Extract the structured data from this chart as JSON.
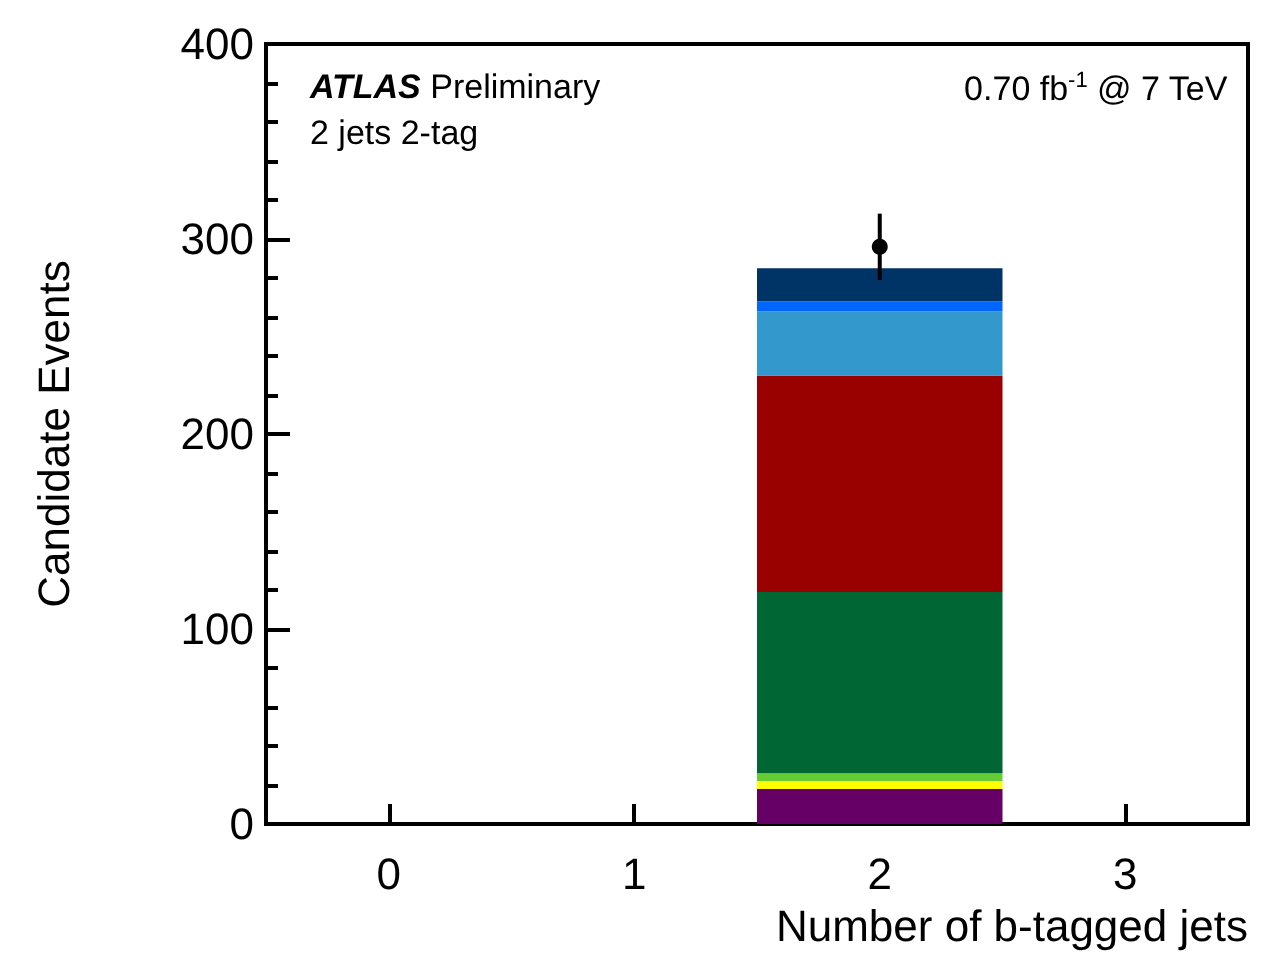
{
  "chart_data": {
    "type": "bar",
    "stacked": true,
    "annotations": [
      "ATLAS Preliminary",
      "2 jets 2-tag",
      "0.70 fb$^{-1}$ @ 7 TeV"
    ],
    "xlabel": "Number of b-tagged jets",
    "ylabel": "Candidate Events",
    "categories": [
      "0",
      "1",
      "2",
      "3"
    ],
    "ylim": [
      0,
      400
    ],
    "yticks": [
      0,
      100,
      200,
      300,
      400
    ],
    "series": [
      {
        "color": "#660066",
        "values": [
          0,
          0,
          18,
          0
        ]
      },
      {
        "color": "#ffff00",
        "values": [
          0,
          0,
          4,
          0
        ]
      },
      {
        "color": "#66cc33",
        "values": [
          0,
          0,
          4,
          0
        ]
      },
      {
        "color": "#006633",
        "values": [
          0,
          0,
          93,
          0
        ]
      },
      {
        "color": "#990000",
        "values": [
          0,
          0,
          111,
          0
        ]
      },
      {
        "color": "#3399cc",
        "values": [
          0,
          0,
          33,
          0
        ]
      },
      {
        "color": "#0066ff",
        "values": [
          0,
          0,
          5,
          0
        ]
      },
      {
        "color": "#003366",
        "values": [
          0,
          0,
          17,
          0
        ]
      },
      {
        "type": "scatter",
        "color": "#000000",
        "x": [
          "2"
        ],
        "values": [
          296
        ],
        "errors": [
          17
        ],
        "marker": "circle"
      }
    ],
    "grid": false
  }
}
